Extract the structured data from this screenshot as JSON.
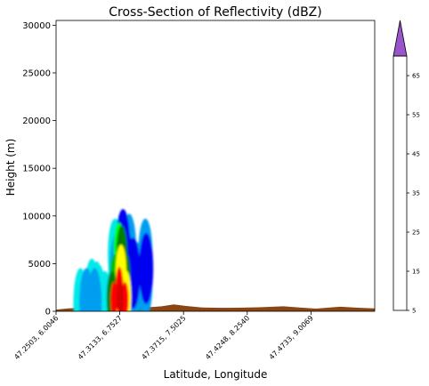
{
  "chart_data": {
    "type": "heatmap",
    "title": "Cross-Section of Reflectivity (dBZ)",
    "xlabel": "Latitude, Longitude",
    "ylabel": "Height (m)",
    "ylim": [
      0,
      30500
    ],
    "yticks": [
      0,
      5000,
      10000,
      15000,
      20000,
      25000,
      30000
    ],
    "xticks": [
      "47.2503, 6.0046",
      "47.3133, 6.7527",
      "47.3715, 7.5025",
      "47.4248, 8.2540",
      "47.4733, 9.0069"
    ],
    "colorbar": {
      "levels": [
        5,
        10,
        15,
        20,
        25,
        30,
        35,
        40,
        45,
        50,
        55,
        60,
        65,
        70
      ],
      "tick_labels": [
        "5",
        "15",
        "25",
        "35",
        "45",
        "55",
        "65"
      ],
      "colors": [
        "#00e8e8",
        "#009ef0",
        "#0000f0",
        "#00ff00",
        "#00c000",
        "#008000",
        "#ffff00",
        "#e7c000",
        "#ff9000",
        "#ff0000",
        "#d60000",
        "#c00000",
        "#ff00ff"
      ],
      "extend_color": "#9955c9"
    },
    "terrain_color": "#8b4513",
    "reflectivity_cells": [
      {
        "x": 0.67,
        "y": 400,
        "dbz": 7
      },
      {
        "x": 0.8,
        "y": 600,
        "dbz": 8
      },
      {
        "x": 0.75,
        "y": 800,
        "dbz": 10
      },
      {
        "x": 0.95,
        "y": 800,
        "dbz": 12
      },
      {
        "x": 1.2,
        "y": 500,
        "dbz": 8
      },
      {
        "x": 1.05,
        "y": 1200,
        "dbz": 8
      },
      {
        "x": 0.6,
        "y": 800,
        "dbz": 6
      },
      {
        "x": 1.0,
        "y": 1500,
        "dbz": 7
      },
      {
        "x": 0.88,
        "y": 1800,
        "dbz": 7
      },
      {
        "x": 1.45,
        "y": 3000,
        "dbz": 8
      },
      {
        "x": 1.45,
        "y": 6000,
        "dbz": 8
      },
      {
        "x": 1.54,
        "y": 6000,
        "dbz": 8
      },
      {
        "x": 1.54,
        "y": 3000,
        "dbz": 7
      },
      {
        "x": 1.5,
        "y": 4500,
        "dbz": 13
      },
      {
        "x": 1.5,
        "y": 1500,
        "dbz": 10
      },
      {
        "x": 1.55,
        "y": 6500,
        "dbz": 22
      },
      {
        "x": 1.65,
        "y": 7000,
        "dbz": 18
      },
      {
        "x": 1.72,
        "y": 5000,
        "dbz": 17
      },
      {
        "x": 1.8,
        "y": 6500,
        "dbz": 10
      },
      {
        "x": 1.9,
        "y": 4000,
        "dbz": 16
      },
      {
        "x": 2.0,
        "y": 3500,
        "dbz": 10
      },
      {
        "x": 1.85,
        "y": 2200,
        "dbz": 14
      },
      {
        "x": 1.4,
        "y": 1200,
        "dbz": 22
      },
      {
        "x": 1.6,
        "y": 4200,
        "dbz": 36
      },
      {
        "x": 1.6,
        "y": 2000,
        "dbz": 41
      },
      {
        "x": 1.62,
        "y": 6200,
        "dbz": 31
      },
      {
        "x": 1.45,
        "y": 3200,
        "dbz": 29
      },
      {
        "x": 1.7,
        "y": 3500,
        "dbz": 33
      },
      {
        "x": 1.72,
        "y": 1500,
        "dbz": 38
      },
      {
        "x": 1.55,
        "y": 700,
        "dbz": 36
      },
      {
        "x": 1.56,
        "y": 2800,
        "dbz": 52
      },
      {
        "x": 1.58,
        "y": 1300,
        "dbz": 56
      },
      {
        "x": 1.7,
        "y": 1200,
        "dbz": 53
      },
      {
        "x": 1.38,
        "y": 1400,
        "dbz": 33
      },
      {
        "x": 1.43,
        "y": 1200,
        "dbz": 52
      },
      {
        "x": 2.2,
        "y": 6000,
        "dbz": 12
      },
      {
        "x": 2.2,
        "y": 3000,
        "dbz": 12
      },
      {
        "x": 2.22,
        "y": 4500,
        "dbz": 16
      }
    ],
    "terrain_profile": [
      {
        "x": 0.0,
        "y": 180
      },
      {
        "x": 0.3,
        "y": 300
      },
      {
        "x": 0.8,
        "y": 420
      },
      {
        "x": 1.3,
        "y": 450
      },
      {
        "x": 1.8,
        "y": 420
      },
      {
        "x": 2.2,
        "y": 400
      },
      {
        "x": 2.6,
        "y": 520
      },
      {
        "x": 2.9,
        "y": 720
      },
      {
        "x": 3.2,
        "y": 560
      },
      {
        "x": 3.6,
        "y": 400
      },
      {
        "x": 4.1,
        "y": 360
      },
      {
        "x": 4.6,
        "y": 380
      },
      {
        "x": 5.0,
        "y": 420
      },
      {
        "x": 5.6,
        "y": 520
      },
      {
        "x": 6.0,
        "y": 400
      },
      {
        "x": 6.4,
        "y": 280
      },
      {
        "x": 7.0,
        "y": 480
      },
      {
        "x": 7.5,
        "y": 360
      },
      {
        "x": 7.85,
        "y": 300
      }
    ],
    "xlim": [
      0,
      7.85
    ]
  }
}
